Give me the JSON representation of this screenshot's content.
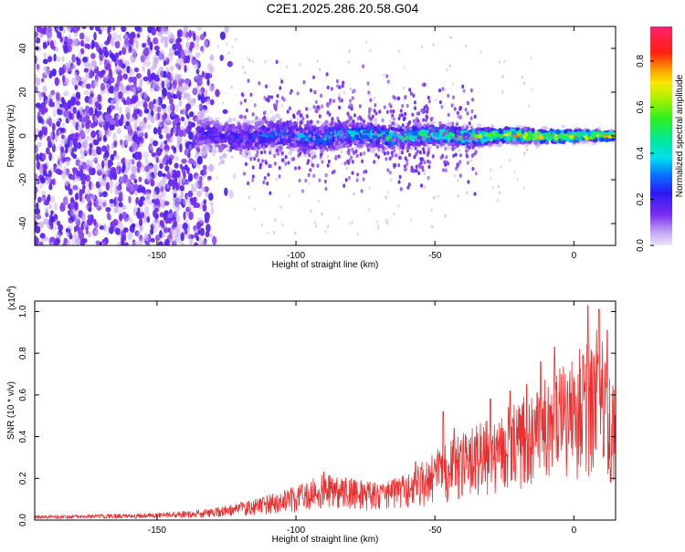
{
  "figure": {
    "title": "C2E1.2025.286.20.58.G04"
  },
  "chart_data": [
    {
      "type": "heatmap",
      "title": "",
      "xlabel": "Height of straight line (km)",
      "ylabel": "Frequency (Hz)",
      "xlim": [
        -194,
        15
      ],
      "ylim": [
        -50,
        50
      ],
      "xticks": [
        -150,
        -100,
        -50,
        0
      ],
      "yticks": [
        -40,
        -20,
        0,
        20,
        40
      ],
      "grid": false,
      "description_of_data": [
        {
          "x_range": [
            -194,
            -135
          ],
          "behavior": "broadband scattered low amplitude across all frequencies"
        },
        {
          "x_range": [
            -135,
            15
          ],
          "behavior": "narrow band centered near 0 Hz, amplitude increasing toward x=0"
        }
      ],
      "colorbar": {
        "label": "Normalized spectral amplitude",
        "range": [
          0,
          0.95
        ],
        "ticks": [
          0.0,
          0.2,
          0.4,
          0.6,
          0.8
        ],
        "tick_labels": [
          "0.0",
          "0.2",
          "0.4",
          "0.6",
          "0.8"
        ]
      }
    },
    {
      "type": "line",
      "title": "",
      "xlabel": "Height of straight line (km)",
      "ylabel": "SNR (10 * v/v)",
      "y_multiplier_label": "(x10",
      "y_multiplier_exponent": "4",
      "y_multiplier_close": ")",
      "xlim": [
        -194,
        15
      ],
      "ylim": [
        0,
        1.05
      ],
      "xticks": [
        -150,
        -100,
        -50,
        0
      ],
      "yticks": [
        0.0,
        0.2,
        0.4,
        0.6,
        0.8,
        1.0
      ],
      "ytick_labels": [
        "0.0",
        "0.2",
        "0.4",
        "0.6",
        "0.8",
        "1.0"
      ],
      "grid": false,
      "series": [
        {
          "color": "#e83030",
          "envelope_points": [
            {
              "x": -194,
              "y": 0.02
            },
            {
              "x": -170,
              "y": 0.025
            },
            {
              "x": -150,
              "y": 0.03
            },
            {
              "x": -130,
              "y": 0.05
            },
            {
              "x": -115,
              "y": 0.09
            },
            {
              "x": -100,
              "y": 0.15
            },
            {
              "x": -90,
              "y": 0.2
            },
            {
              "x": -80,
              "y": 0.18
            },
            {
              "x": -70,
              "y": 0.16
            },
            {
              "x": -60,
              "y": 0.2
            },
            {
              "x": -50,
              "y": 0.3
            },
            {
              "x": -40,
              "y": 0.38
            },
            {
              "x": -30,
              "y": 0.45
            },
            {
              "x": -20,
              "y": 0.52
            },
            {
              "x": -12,
              "y": 0.6
            },
            {
              "x": -5,
              "y": 0.68
            },
            {
              "x": 0,
              "y": 0.72
            },
            {
              "x": 5,
              "y": 0.8
            },
            {
              "x": 10,
              "y": 0.85
            },
            {
              "x": 15,
              "y": 0.6
            }
          ],
          "peaks": [
            {
              "x": -90,
              "y": 0.23
            },
            {
              "x": -57,
              "y": 0.28
            },
            {
              "x": -47,
              "y": 0.52
            },
            {
              "x": -43,
              "y": 0.44
            },
            {
              "x": -30,
              "y": 0.58
            },
            {
              "x": -23,
              "y": 0.62
            },
            {
              "x": -17,
              "y": 0.65
            },
            {
              "x": -12,
              "y": 0.76
            },
            {
              "x": -7,
              "y": 0.83
            },
            {
              "x": 5,
              "y": 1.03
            },
            {
              "x": 9,
              "y": 1.01
            },
            {
              "x": 12,
              "y": 0.91
            }
          ]
        }
      ]
    }
  ],
  "colors": {
    "snr_line": "#e83030",
    "frame": "#000000",
    "background": "#ffffff"
  }
}
